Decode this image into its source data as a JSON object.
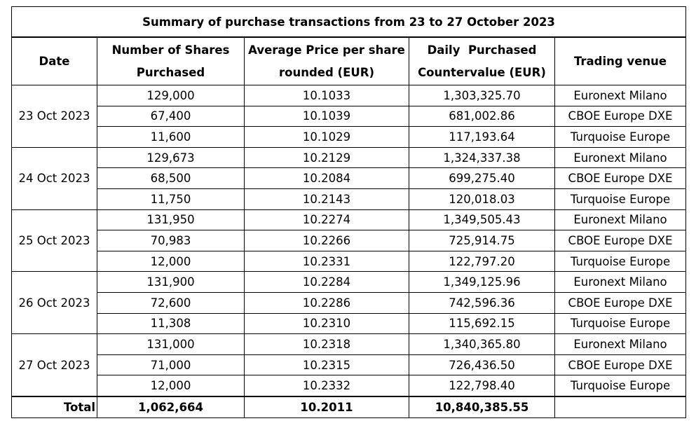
{
  "title": "Summary of purchase transactions from 23 to 27 October 2023",
  "headers": {
    "date": "Date",
    "shares_line1": "Number of Shares",
    "shares_line2": "Purchased",
    "price_line1": "Average Price per share",
    "price_line2": "rounded (EUR)",
    "counter_line1": "Daily  Purchased",
    "counter_line2": "Countervalue (EUR)",
    "venue": "Trading venue"
  },
  "groups": [
    {
      "date": "23 Oct 2023",
      "rows": [
        {
          "shares": "129,000",
          "price": "10.1033",
          "countervalue": "1,303,325.70",
          "venue": "Euronext Milano"
        },
        {
          "shares": "67,400",
          "price": "10.1039",
          "countervalue": "681,002.86",
          "venue": "CBOE Europe DXE"
        },
        {
          "shares": "11,600",
          "price": "10.1029",
          "countervalue": "117,193.64",
          "venue": "Turquoise Europe"
        }
      ]
    },
    {
      "date": "24 Oct 2023",
      "rows": [
        {
          "shares": "129,673",
          "price": "10.2129",
          "countervalue": "1,324,337.38",
          "venue": "Euronext Milano"
        },
        {
          "shares": "68,500",
          "price": "10.2084",
          "countervalue": "699,275.40",
          "venue": "CBOE Europe DXE"
        },
        {
          "shares": "11,750",
          "price": "10.2143",
          "countervalue": "120,018.03",
          "venue": "Turquoise Europe"
        }
      ]
    },
    {
      "date": "25 Oct 2023",
      "rows": [
        {
          "shares": "131,950",
          "price": "10.2274",
          "countervalue": "1,349,505.43",
          "venue": "Euronext Milano"
        },
        {
          "shares": "70,983",
          "price": "10.2266",
          "countervalue": "725,914.75",
          "venue": "CBOE Europe DXE"
        },
        {
          "shares": "12,000",
          "price": "10.2331",
          "countervalue": "122,797.20",
          "venue": "Turquoise Europe"
        }
      ]
    },
    {
      "date": "26 Oct 2023",
      "rows": [
        {
          "shares": "131,900",
          "price": "10.2284",
          "countervalue": "1,349,125.96",
          "venue": "Euronext Milano"
        },
        {
          "shares": "72,600",
          "price": "10.2286",
          "countervalue": "742,596.36",
          "venue": "CBOE Europe DXE"
        },
        {
          "shares": "11,308",
          "price": "10.2310",
          "countervalue": "115,692.15",
          "venue": "Turquoise Europe"
        }
      ]
    },
    {
      "date": "27 Oct 2023",
      "rows": [
        {
          "shares": "131,000",
          "price": "10.2318",
          "countervalue": "1,340,365.80",
          "venue": "Euronext Milano"
        },
        {
          "shares": "71,000",
          "price": "10.2315",
          "countervalue": "726,436.50",
          "venue": "CBOE Europe DXE"
        },
        {
          "shares": "12,000",
          "price": "10.2332",
          "countervalue": "122,798.40",
          "venue": "Turquoise Europe"
        }
      ]
    }
  ],
  "total": {
    "label": "Total",
    "shares": "1,062,664",
    "price": "10.2011",
    "countervalue": "10,840,385.55",
    "venue": ""
  }
}
